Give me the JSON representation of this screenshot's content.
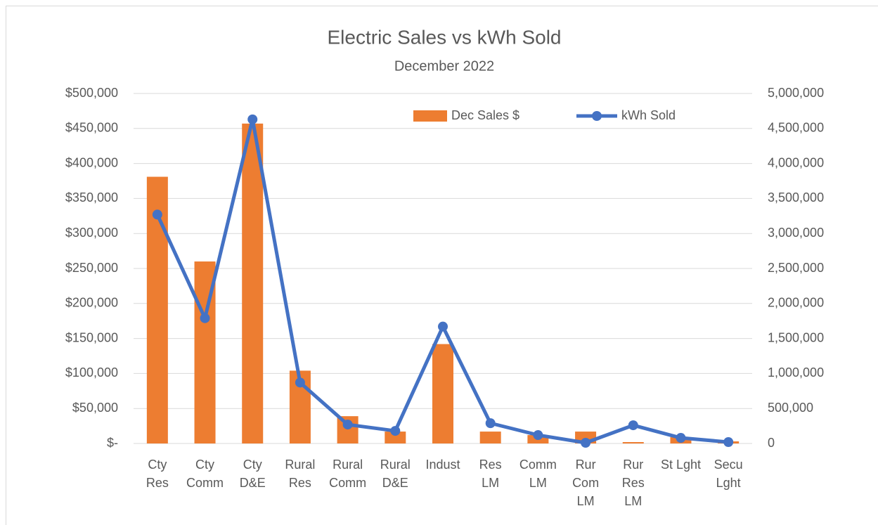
{
  "chart_data": {
    "type": "bar_line",
    "title": "Electric Sales vs kWh Sold",
    "subtitle": "December 2022",
    "categories": [
      "Cty\nRes",
      "Cty\nComm",
      "Cty\nD&E",
      "Rural\nRes",
      "Rural\nComm",
      "Rural\nD&E",
      "Indust",
      "Res\nLM",
      "Comm\nLM",
      "Rur\nCom\nLM",
      "Rur\nRes\nLM",
      "St Lght",
      "Secu\nLght"
    ],
    "series": [
      {
        "name": "Dec Sales $",
        "type": "bar",
        "color": "#ed7d31",
        "axis": "y",
        "values": [
          381000,
          260000,
          457000,
          104000,
          39000,
          17000,
          142000,
          17000,
          12000,
          17000,
          2000,
          9000,
          3000
        ]
      },
      {
        "name": "kWh Sold",
        "type": "line",
        "color": "#4472c4",
        "axis": "y2",
        "values": [
          3270000,
          1790000,
          4630000,
          870000,
          270000,
          180000,
          1670000,
          290000,
          120000,
          10000,
          260000,
          80000,
          20000
        ]
      }
    ],
    "ylim": [
      0,
      500000
    ],
    "yticks": [
      {
        "value": 0,
        "label": "$-"
      },
      {
        "value": 50000,
        "label": "$50,000"
      },
      {
        "value": 100000,
        "label": "$100,000"
      },
      {
        "value": 150000,
        "label": "$150,000"
      },
      {
        "value": 200000,
        "label": "$200,000"
      },
      {
        "value": 250000,
        "label": "$250,000"
      },
      {
        "value": 300000,
        "label": "$300,000"
      },
      {
        "value": 350000,
        "label": "$350,000"
      },
      {
        "value": 400000,
        "label": "$400,000"
      },
      {
        "value": 450000,
        "label": "$450,000"
      },
      {
        "value": 500000,
        "label": "$500,000"
      }
    ],
    "y2lim": [
      0,
      5000000
    ],
    "y2ticks": [
      0,
      {
        "value": 500000,
        "label": "500,000"
      },
      {
        "value": 1000000,
        "label": "1,000,000"
      },
      {
        "value": 1500000,
        "label": "1,500,000"
      },
      {
        "value": 2000000,
        "label": "2,000,000"
      },
      {
        "value": 2500000,
        "label": "2,500,000"
      },
      {
        "value": 3000000,
        "label": "3,000,000"
      },
      {
        "value": 3500000,
        "label": "3,500,000"
      },
      {
        "value": 4000000,
        "label": "4,000,000"
      },
      {
        "value": 4500000,
        "label": "4,500,000"
      },
      {
        "value": 5000000,
        "label": "5,000,000"
      }
    ],
    "grid": true,
    "legend": "top"
  }
}
